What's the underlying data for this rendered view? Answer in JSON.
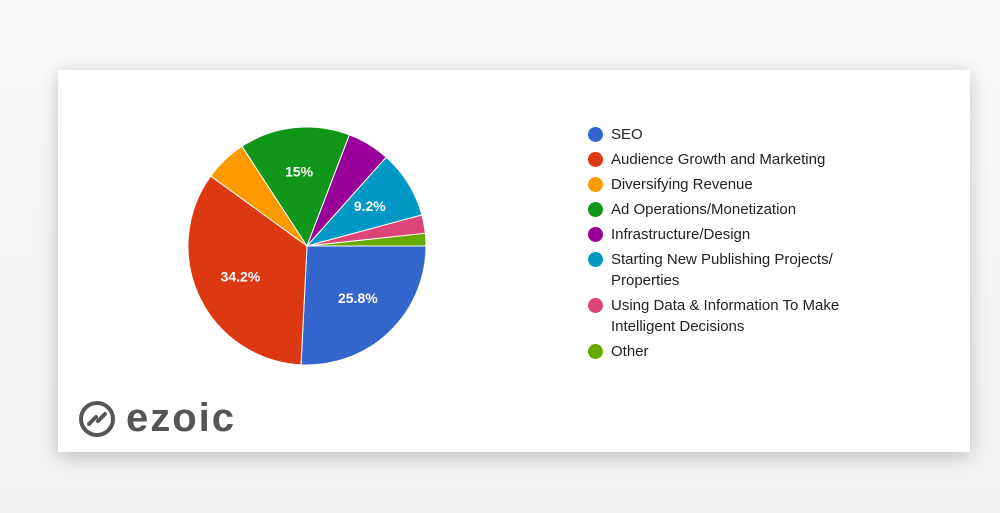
{
  "chart_data": {
    "type": "pie",
    "categories": [
      "SEO",
      "Audience Growth and Marketing",
      "Diversifying Revenue",
      "Ad Operations/Monetization",
      "Infrastructure/Design",
      "Starting New Publishing Projects/ Properties",
      "Using Data & Information To Make Intelligent Decisions",
      "Other"
    ],
    "values": [
      25.8,
      34.2,
      5.8,
      15,
      5.8,
      9.2,
      2.5,
      1.7
    ],
    "value_labels": [
      "25.8%",
      "34.2%",
      null,
      "15%",
      null,
      "9.2%",
      null,
      null
    ],
    "colors": [
      "#3366cc",
      "#dc3912",
      "#ff9900",
      "#109618",
      "#990099",
      "#0099c6",
      "#dd4477",
      "#66aa00"
    ],
    "legend": "right"
  },
  "logo": "ezoic"
}
